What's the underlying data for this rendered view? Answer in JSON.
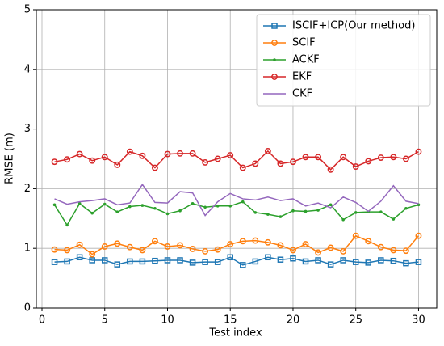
{
  "chart_data": {
    "type": "line",
    "x_label": "Test index",
    "y_label": "RMSE (m)",
    "x": [
      1,
      2,
      3,
      4,
      5,
      6,
      7,
      8,
      9,
      10,
      11,
      12,
      13,
      14,
      15,
      16,
      17,
      18,
      19,
      20,
      21,
      22,
      23,
      24,
      25,
      26,
      27,
      28,
      29,
      30
    ],
    "series": [
      {
        "name": "ISCIF+ICP(Our method)",
        "color": "#1f77b4",
        "marker": "square-open",
        "values": [
          0.77,
          0.78,
          0.85,
          0.8,
          0.8,
          0.73,
          0.78,
          0.78,
          0.79,
          0.8,
          0.8,
          0.76,
          0.77,
          0.77,
          0.85,
          0.72,
          0.78,
          0.85,
          0.81,
          0.83,
          0.78,
          0.8,
          0.73,
          0.8,
          0.77,
          0.76,
          0.8,
          0.79,
          0.75,
          0.77
        ]
      },
      {
        "name": "SCIF",
        "color": "#ff7f0e",
        "marker": "circle-open",
        "values": [
          0.98,
          0.97,
          1.06,
          0.9,
          1.03,
          1.08,
          1.02,
          0.97,
          1.12,
          1.03,
          1.05,
          0.99,
          0.95,
          0.98,
          1.07,
          1.12,
          1.13,
          1.1,
          1.05,
          0.97,
          1.07,
          0.93,
          1.01,
          0.95,
          1.21,
          1.12,
          1.02,
          0.97,
          0.96,
          1.21
        ]
      },
      {
        "name": "ACKF",
        "color": "#2ca02c",
        "marker": "dot",
        "values": [
          1.73,
          1.39,
          1.75,
          1.59,
          1.74,
          1.61,
          1.7,
          1.72,
          1.67,
          1.58,
          1.63,
          1.75,
          1.69,
          1.71,
          1.71,
          1.78,
          1.6,
          1.57,
          1.53,
          1.63,
          1.62,
          1.64,
          1.73,
          1.48,
          1.6,
          1.61,
          1.61,
          1.49,
          1.67,
          1.73
        ]
      },
      {
        "name": "EKF",
        "color": "#d62728",
        "marker": "circle-open",
        "values": [
          2.45,
          2.49,
          2.58,
          2.47,
          2.53,
          2.4,
          2.62,
          2.55,
          2.35,
          2.58,
          2.59,
          2.59,
          2.44,
          2.5,
          2.56,
          2.35,
          2.42,
          2.63,
          2.42,
          2.45,
          2.53,
          2.53,
          2.32,
          2.53,
          2.37,
          2.46,
          2.52,
          2.53,
          2.5,
          2.62
        ]
      },
      {
        "name": "CKF",
        "color": "#9467bd",
        "marker": "none",
        "values": [
          1.83,
          1.74,
          1.78,
          1.8,
          1.83,
          1.73,
          1.76,
          2.07,
          1.77,
          1.76,
          1.95,
          1.93,
          1.55,
          1.78,
          1.92,
          1.83,
          1.81,
          1.86,
          1.8,
          1.83,
          1.71,
          1.76,
          1.68,
          1.86,
          1.77,
          1.62,
          1.79,
          2.05,
          1.79,
          1.75
        ]
      }
    ],
    "xlim": [
      -0.45,
      31.45
    ],
    "xticks": [
      0,
      5,
      10,
      15,
      20,
      25,
      30
    ],
    "ylim": [
      0,
      5
    ],
    "yticks": [
      0,
      1,
      2,
      3,
      4,
      5
    ],
    "grid": true,
    "legend": "upper right"
  }
}
